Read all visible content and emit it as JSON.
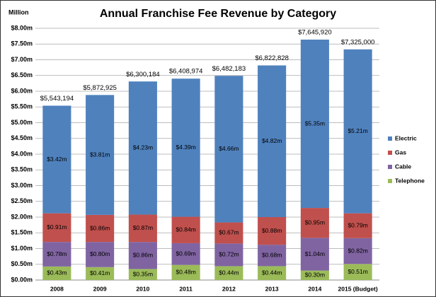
{
  "chart_data": {
    "type": "stacked-bar",
    "title": "Annual Franchise Fee Revenue by Category",
    "y_label": "Million",
    "categories": [
      "2008",
      "2009",
      "2010",
      "2011",
      "2012",
      "2013",
      "2014",
      "2015 (Budget)"
    ],
    "series": [
      {
        "name": "Telephone",
        "color": "#9bbb59",
        "values": [
          0.43,
          0.41,
          0.35,
          0.48,
          0.44,
          0.44,
          0.3,
          0.51
        ],
        "value_labels": [
          "$0.43m",
          "$0.41m",
          "$0.35m",
          "$0.48m",
          "$0.44m",
          "$0.44m",
          "$0.30m",
          "$0.51m"
        ]
      },
      {
        "name": "Cable",
        "color": "#8064a2",
        "values": [
          0.78,
          0.8,
          0.86,
          0.69,
          0.72,
          0.68,
          1.04,
          0.82
        ],
        "value_labels": [
          "$0.78m",
          "$0.80m",
          "$0.86m",
          "$0.69m",
          "$0.72m",
          "$0.68m",
          "$1.04m",
          "$0.82m"
        ]
      },
      {
        "name": "Gas",
        "color": "#c0504d",
        "values": [
          0.91,
          0.86,
          0.87,
          0.84,
          0.67,
          0.88,
          0.95,
          0.79
        ],
        "value_labels": [
          "$0.91m",
          "$0.86m",
          "$0.87m",
          "$0.84m",
          "$0.67m",
          "$0.88m",
          "$0.95m",
          "$0.79m"
        ]
      },
      {
        "name": "Electric",
        "color": "#4f81bd",
        "values": [
          3.42,
          3.81,
          4.23,
          4.39,
          4.66,
          4.82,
          5.35,
          5.21
        ],
        "value_labels": [
          "$3.42m",
          "$3.81m",
          "$4.23m",
          "$4.39m",
          "$4.66m",
          "$4.82m",
          "$5.35m",
          "$5.21m"
        ]
      }
    ],
    "totals": {
      "values": [
        5.543194,
        5.872925,
        6.300184,
        6.408974,
        6.482183,
        6.822828,
        7.64592,
        7.325
      ],
      "value_labels": [
        "$5,543,194",
        "$5,872,925",
        "$6,300,184",
        "$6,408,974",
        "$6,482,183",
        "$6,822,828",
        "$7,645,920",
        "$7,325,000"
      ]
    },
    "ylim": [
      0,
      8
    ],
    "yticks": [
      {
        "value": 0,
        "label": "$0.00m"
      },
      {
        "value": 0.5,
        "label": "$0.50m"
      },
      {
        "value": 1,
        "label": "$1.00m"
      },
      {
        "value": 1.5,
        "label": "$1.50m"
      },
      {
        "value": 2,
        "label": "$2.00m"
      },
      {
        "value": 2.5,
        "label": "$2.50m"
      },
      {
        "value": 3,
        "label": "$3.00m"
      },
      {
        "value": 3.5,
        "label": "$3.50m"
      },
      {
        "value": 4,
        "label": "$4.00m"
      },
      {
        "value": 4.5,
        "label": "$4.50m"
      },
      {
        "value": 5,
        "label": "$5.00m"
      },
      {
        "value": 5.5,
        "label": "$5.50m"
      },
      {
        "value": 6,
        "label": "$6.00m"
      },
      {
        "value": 6.5,
        "label": "$6.50m"
      },
      {
        "value": 7,
        "label": "$7.00m"
      },
      {
        "value": 7.5,
        "label": "$7.50m"
      },
      {
        "value": 8,
        "label": "$8.00m"
      }
    ],
    "grid": true,
    "legend": "right"
  }
}
